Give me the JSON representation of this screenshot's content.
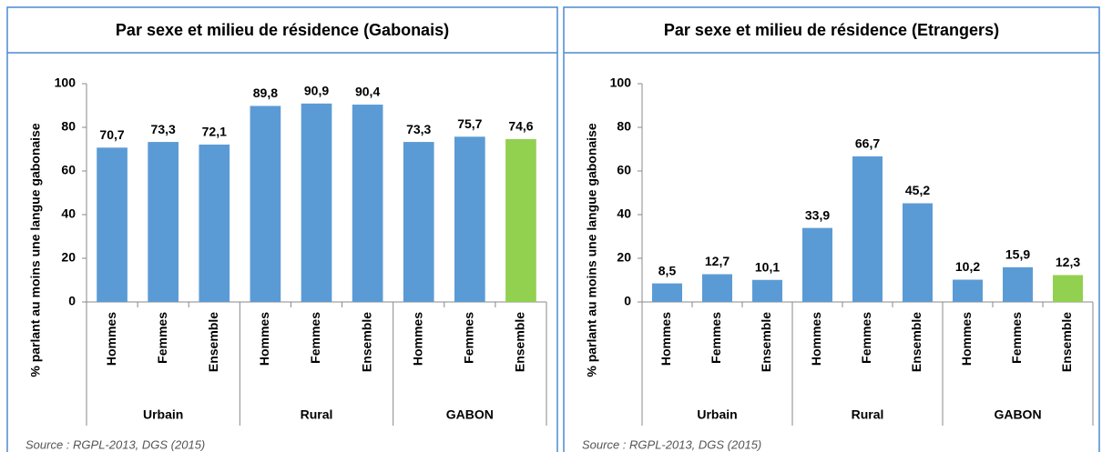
{
  "chart_data": [
    {
      "type": "bar",
      "title": "Par sexe et milieu de résidence (Gabonais)",
      "ylabel": "% parlant au moins une langue gabonaise",
      "categories": [
        "Hommes",
        "Femmes",
        "Ensemble",
        "Hommes",
        "Femmes",
        "Ensemble",
        "Hommes",
        "Femmes",
        "Ensemble"
      ],
      "groups": [
        "Urbain",
        "Rural",
        "GABON"
      ],
      "values": [
        70.7,
        73.3,
        72.1,
        89.8,
        90.9,
        90.4,
        73.3,
        75.7,
        74.6
      ],
      "value_labels": [
        "70,7",
        "73,3",
        "72,1",
        "89,8",
        "90,9",
        "90,4",
        "73,3",
        "75,7",
        "74,6"
      ],
      "colors": [
        "#5b9bd5",
        "#5b9bd5",
        "#5b9bd5",
        "#5b9bd5",
        "#5b9bd5",
        "#5b9bd5",
        "#5b9bd5",
        "#5b9bd5",
        "#92d050"
      ],
      "ylim": [
        0,
        100
      ],
      "yticks": [
        0,
        20,
        40,
        60,
        80,
        100
      ],
      "source": "Source : RGPL-2013, DGS (2015)"
    },
    {
      "type": "bar",
      "title": "Par sexe et milieu de résidence (Etrangers)",
      "ylabel": "% parlant au moins une langue gabonaise",
      "categories": [
        "Hommes",
        "Femmes",
        "Ensemble",
        "Hommes",
        "Femmes",
        "Ensemble",
        "Hommes",
        "Femmes",
        "Ensemble"
      ],
      "groups": [
        "Urbain",
        "Rural",
        "GABON"
      ],
      "values": [
        8.5,
        12.7,
        10.1,
        33.9,
        66.7,
        45.2,
        10.2,
        15.9,
        12.3
      ],
      "value_labels": [
        "8,5",
        "12,7",
        "10,1",
        "33,9",
        "66,7",
        "45,2",
        "10,2",
        "15,9",
        "12,3"
      ],
      "colors": [
        "#5b9bd5",
        "#5b9bd5",
        "#5b9bd5",
        "#5b9bd5",
        "#5b9bd5",
        "#5b9bd5",
        "#5b9bd5",
        "#5b9bd5",
        "#92d050"
      ],
      "ylim": [
        0,
        100
      ],
      "yticks": [
        0,
        20,
        40,
        60,
        80,
        100
      ],
      "source": "Source : RGPL-2013, DGS (2015)"
    }
  ]
}
